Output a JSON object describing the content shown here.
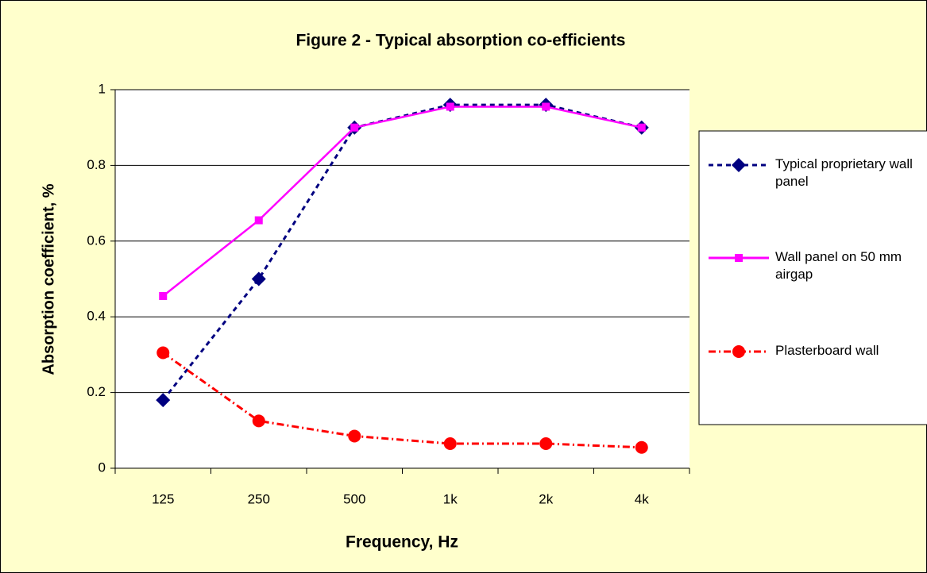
{
  "chart_data": {
    "type": "line",
    "title": "Figure 2 - Typical absorption co-efficients",
    "x_label": "Frequency, Hz",
    "y_label": "Absorption coefficient, %",
    "categories": [
      "125",
      "250",
      "500",
      "1k",
      "2k",
      "4k"
    ],
    "series": [
      {
        "name": "Typical proprietary wall panel",
        "color": "#000080",
        "dash": "dashed",
        "marker": "diamond",
        "values": [
          0.18,
          0.5,
          0.9,
          0.96,
          0.96,
          0.9
        ]
      },
      {
        "name": "Wall panel on 50 mm airgap",
        "color": "#ff00ff",
        "dash": "solid",
        "marker": "square",
        "values": [
          0.455,
          0.655,
          0.9,
          0.955,
          0.955,
          0.9
        ]
      },
      {
        "name": "Plasterboard wall",
        "color": "#ff0000",
        "dash": "dashdot",
        "marker": "circle",
        "values": [
          0.305,
          0.125,
          0.085,
          0.065,
          0.065,
          0.055
        ]
      }
    ],
    "ylim": [
      0,
      1
    ],
    "yticks": [
      0,
      0.2,
      0.4,
      0.6,
      0.8,
      1
    ],
    "grid": true,
    "legend": "right"
  }
}
